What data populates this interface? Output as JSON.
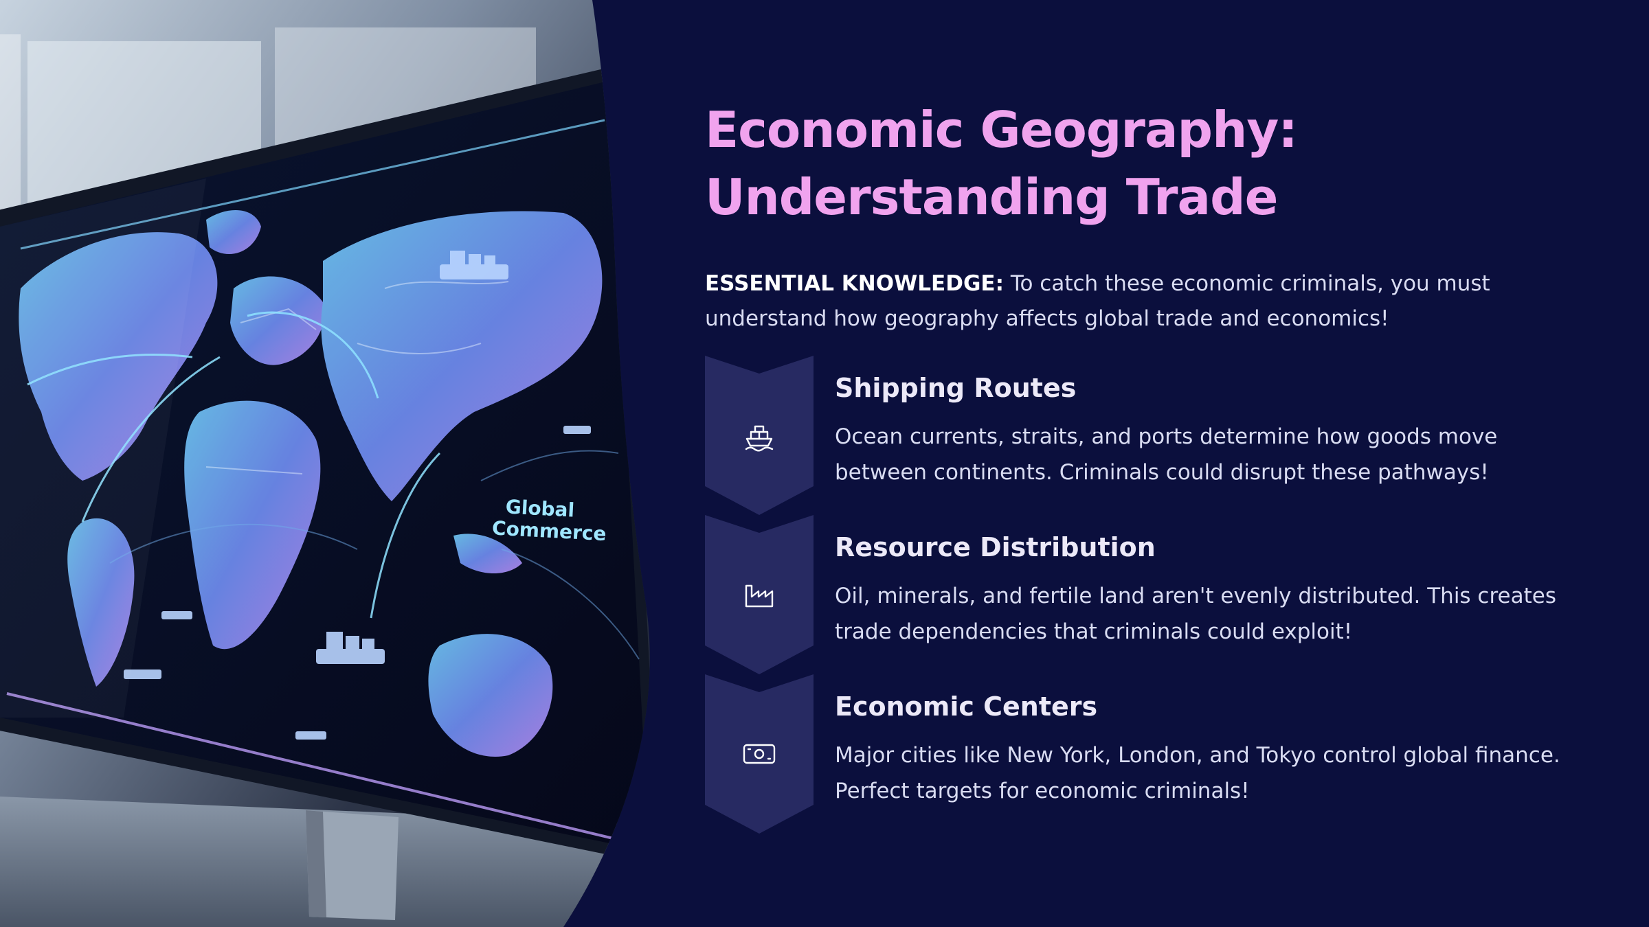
{
  "slide": {
    "title_line1": "Economic Geography:",
    "title_line2": "Understanding Trade",
    "intro_lead": "ESSENTIAL KNOWLEDGE:",
    "intro_text": " To catch these economic criminals, you must understand how geography affects global trade and economics!",
    "items": [
      {
        "icon": "ship-icon",
        "title": "Shipping Routes",
        "description": "Ocean currents, straits, and ports determine how goods move between continents. Criminals could disrupt these pathways!"
      },
      {
        "icon": "factory-icon",
        "title": "Resource Distribution",
        "description": "Oil, minerals, and fertile land aren't evenly distributed. This creates trade dependencies that criminals could exploit!"
      },
      {
        "icon": "money-icon",
        "title": "Economic Centers",
        "description": "Major cities like New York, London, and Tokyo control global finance. Perfect targets for economic criminals!"
      }
    ]
  },
  "photo": {
    "label_line1": "Global",
    "label_line2": "Commerce"
  },
  "colors": {
    "background": "#0b0f3d",
    "title": "#f0a3ee",
    "chevron": "#272a62",
    "text": "#d9dcf2",
    "heading": "#ece9f8"
  }
}
